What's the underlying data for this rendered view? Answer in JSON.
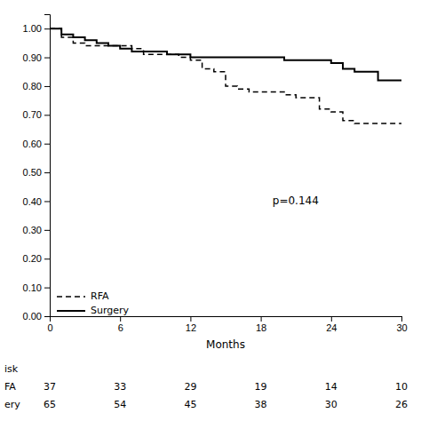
{
  "chart_data": {
    "type": "step",
    "xlabel": "Months",
    "x": [
      0,
      1,
      2,
      3,
      4,
      5,
      6,
      7,
      8,
      9,
      10,
      11,
      12,
      13,
      14,
      15,
      16,
      17,
      18,
      19,
      20,
      21,
      22,
      23,
      24,
      25,
      26,
      27,
      28,
      29,
      30
    ],
    "series": [
      {
        "name": "RFA",
        "color": "#000000",
        "line_style": "dashed",
        "values": [
          1.0,
          0.97,
          0.95,
          0.94,
          0.94,
          0.94,
          0.94,
          0.93,
          0.91,
          0.91,
          0.91,
          0.9,
          0.89,
          0.86,
          0.85,
          0.8,
          0.79,
          0.78,
          0.78,
          0.78,
          0.77,
          0.76,
          0.76,
          0.72,
          0.71,
          0.68,
          0.67,
          0.67,
          0.67,
          0.67,
          0.67
        ]
      },
      {
        "name": "Surgery",
        "color": "#000000",
        "line_style": "solid",
        "values": [
          1.0,
          0.98,
          0.97,
          0.96,
          0.95,
          0.94,
          0.93,
          0.92,
          0.92,
          0.92,
          0.91,
          0.91,
          0.9,
          0.9,
          0.9,
          0.9,
          0.9,
          0.9,
          0.9,
          0.9,
          0.89,
          0.89,
          0.89,
          0.89,
          0.88,
          0.86,
          0.85,
          0.85,
          0.82,
          0.82,
          0.82
        ]
      }
    ],
    "xlim": [
      0,
      30
    ],
    "ylim": [
      0.0,
      1.05
    ],
    "xticks": [
      0,
      6,
      12,
      18,
      24,
      30
    ],
    "yticks": [
      {
        "value": 0.0,
        "label": "0.00"
      },
      {
        "value": 0.1,
        "label": "0.10"
      },
      {
        "value": 0.2,
        "label": "0.20"
      },
      {
        "value": 0.3,
        "label": "0.30"
      },
      {
        "value": 0.4,
        "label": "0.40"
      },
      {
        "value": 0.5,
        "label": "0.50"
      },
      {
        "value": 0.6,
        "label": "0.60"
      },
      {
        "value": 0.7,
        "label": "0.70"
      },
      {
        "value": 0.8,
        "label": "0.80"
      },
      {
        "value": 0.9,
        "label": "0.90"
      },
      {
        "value": 1.0,
        "label": "1.00"
      }
    ],
    "annotations": [
      {
        "text": "p=0.144",
        "x": 19,
        "y": 0.4
      }
    ],
    "legend": "lower left",
    "grid": false,
    "at_risk": {
      "label": "isk",
      "times": [
        0,
        6,
        12,
        18,
        24,
        30
      ],
      "rows": [
        {
          "name": "FA",
          "values": [
            37,
            33,
            29,
            19,
            14,
            10
          ]
        },
        {
          "name": "ery",
          "values": [
            65,
            54,
            45,
            38,
            30,
            26
          ]
        }
      ]
    }
  }
}
